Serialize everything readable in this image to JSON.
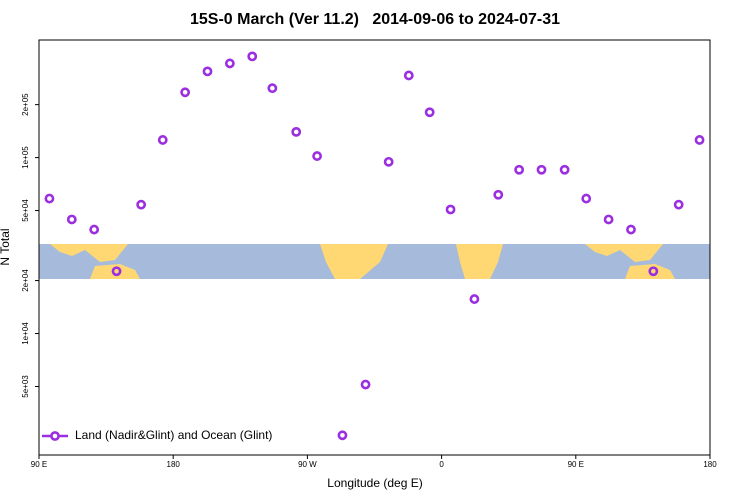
{
  "chart_data": {
    "type": "scatter",
    "title": "15S-0 March (Ver 11.2)   2014-09-06 to 2024-07-31",
    "x_label": "Longitude (deg E)",
    "y_label": "N Total",
    "log_y": true,
    "xlim": [
      90,
      540
    ],
    "xticks": [
      {
        "value": 90,
        "label": "90 E"
      },
      {
        "value": 180,
        "label": "180"
      },
      {
        "value": 270,
        "label": "90 W"
      },
      {
        "value": 360,
        "label": "0"
      },
      {
        "value": 450,
        "label": "90 E"
      },
      {
        "value": 540,
        "label": "180"
      }
    ],
    "ylim": [
      2040,
      466000
    ],
    "yticks": [
      {
        "value": 5000,
        "label": "5e+03"
      },
      {
        "value": 10000,
        "label": "1e+04"
      },
      {
        "value": 20000,
        "label": "2e+04"
      },
      {
        "value": 50000,
        "label": "5e+04"
      },
      {
        "value": 100000,
        "label": "1e+05"
      },
      {
        "value": 200000,
        "label": "2e+05"
      }
    ],
    "legend": "bottom-left",
    "series": [
      {
        "name": "Land (Nadir&Glint) and Ocean (Glint)",
        "color": "#9a2ee0",
        "x": [
          97,
          112,
          127,
          142,
          158.5,
          173,
          188,
          203,
          218,
          233,
          246.5,
          262.5,
          276.5,
          293.5,
          309,
          324.5,
          338,
          352,
          366,
          382,
          398,
          412,
          427,
          442.5,
          457,
          472,
          487,
          502,
          519,
          533
        ],
        "values": [
          58500,
          44500,
          39000,
          22600,
          54000,
          126000,
          235000,
          309000,
          343000,
          376000,
          248000,
          140000,
          102000,
          2640,
          5130,
          94600,
          293000,
          181000,
          50700,
          15700,
          61500,
          85300,
          85300,
          85300,
          58500,
          44500,
          39000,
          22600,
          54000,
          126000
        ]
      }
    ]
  }
}
